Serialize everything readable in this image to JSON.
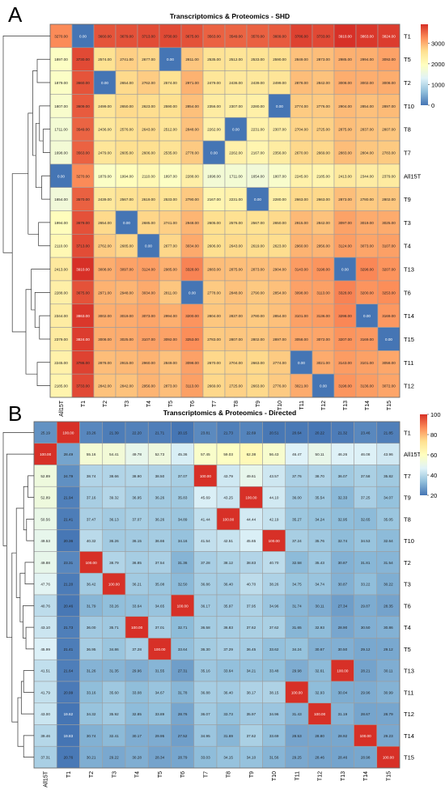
{
  "figure": {
    "panel_a_letter": "A",
    "panel_b_letter": "B"
  },
  "chart_data": [
    {
      "type": "heatmap",
      "title": "Transcriptomics & Proteomics - SHD",
      "xlabel": "",
      "ylabel": "",
      "columns": [
        "All15T",
        "T1",
        "T2",
        "T3",
        "T4",
        "T5",
        "T6",
        "T7",
        "T8",
        "T9",
        "T10",
        "T11",
        "T12",
        "T13",
        "T14",
        "T15"
      ],
      "rows": [
        "T1",
        "T5",
        "T2",
        "T10",
        "T8",
        "T7",
        "All15T",
        "T9",
        "T3",
        "T4",
        "T13",
        "T6",
        "T14",
        "T15",
        "T11",
        "T12"
      ],
      "values": [
        [
          3270,
          0,
          3660,
          3679,
          3713,
          3730,
          3675,
          3563,
          3549,
          3570,
          3609,
          3786,
          3733,
          3910,
          3863,
          3824
        ],
        [
          1897,
          3730,
          2574,
          2741,
          2677,
          0,
          2811,
          2535,
          2512,
          2533,
          2590,
          2849,
          2873,
          2985,
          2994,
          3092
        ],
        [
          1879,
          3660,
          0,
          2654,
          2762,
          2574,
          2971,
          2479,
          2436,
          2439,
          2499,
          2878,
          2842,
          3008,
          3002,
          3008
        ],
        [
          1807,
          3609,
          2499,
          2650,
          2623,
          2590,
          2854,
          2356,
          2307,
          2280,
          0,
          2774,
          2776,
          2904,
          2854,
          2897
        ],
        [
          1711,
          3549,
          2436,
          2576,
          2643,
          2512,
          2848,
          2262,
          0,
          2231,
          2307,
          2704,
          2725,
          2875,
          2837,
          2807
        ],
        [
          1698,
          3563,
          2479,
          2605,
          2606,
          2535,
          2778,
          0,
          2262,
          2167,
          2356,
          2670,
          2669,
          2883,
          2804,
          2783
        ],
        [
          0,
          3270,
          1879,
          1994,
          2110,
          1897,
          2288,
          1698,
          1711,
          1654,
          1807,
          2245,
          2185,
          2413,
          2344,
          2379
        ],
        [
          1654,
          3570,
          2439,
          2567,
          2619,
          2533,
          2790,
          2167,
          2231,
          0,
          2280,
          2663,
          2663,
          2873,
          2780,
          2802
        ],
        [
          1994,
          3679,
          2654,
          0,
          2685,
          2741,
          2948,
          2605,
          2576,
          2567,
          2650,
          2915,
          2842,
          3097,
          3019,
          3025
        ],
        [
          2110,
          3713,
          2762,
          2685,
          0,
          2677,
          3034,
          2606,
          2643,
          2619,
          2623,
          2960,
          2956,
          3124,
          3073,
          3107
        ],
        [
          2413,
          3910,
          3008,
          3097,
          3124,
          2985,
          3328,
          2883,
          2875,
          2873,
          2904,
          3143,
          3198,
          0,
          3298,
          3207
        ],
        [
          2288,
          3675,
          2971,
          2948,
          3034,
          2811,
          0,
          2778,
          2848,
          2790,
          2854,
          3098,
          3113,
          3328,
          3200,
          3253
        ],
        [
          2344,
          3863,
          3002,
          3019,
          3073,
          2994,
          3200,
          2804,
          2837,
          2780,
          2854,
          3101,
          3136,
          3298,
          0,
          3169
        ],
        [
          2379,
          3824,
          3008,
          3025,
          3107,
          3092,
          3253,
          2783,
          2807,
          2802,
          2897,
          3058,
          3072,
          3207,
          3169,
          0
        ],
        [
          2245,
          3786,
          2878,
          2915,
          2960,
          2849,
          3098,
          2670,
          2704,
          2663,
          2774,
          0,
          3021,
          3143,
          3101,
          3058
        ],
        [
          2185,
          3733,
          2842,
          2842,
          2956,
          2873,
          3113,
          2669,
          2725,
          2663,
          2776,
          3021,
          0,
          3198,
          3136,
          3072
        ]
      ],
      "colorbar": {
        "min": 0,
        "max": 3910,
        "ticks": [
          0,
          1000,
          2000,
          3000
        ]
      },
      "colormap": [
        "#4575b4",
        "#91bfdb",
        "#e0f3f8",
        "#ffffbf",
        "#fee090",
        "#fc8d59",
        "#d73027"
      ],
      "tick_labels": [
        "0",
        "1000",
        "2000",
        "3000"
      ],
      "number_format": 2,
      "dendrogram": "left"
    },
    {
      "type": "heatmap",
      "title": "Transcriptomics & Proteomics - Directed",
      "xlabel": "",
      "ylabel": "",
      "columns": [
        "All15T",
        "T1",
        "T2",
        "T3",
        "T4",
        "T5",
        "T6",
        "T7",
        "T8",
        "T9",
        "T10",
        "T11",
        "T12",
        "T13",
        "T14",
        "T15"
      ],
      "rows": [
        "T1",
        "All15T",
        "T7",
        "T9",
        "T8",
        "T10",
        "T2",
        "T3",
        "T6",
        "T4",
        "T5",
        "T13",
        "T11",
        "T12",
        "T14",
        "T15"
      ],
      "values": [
        [
          25.19,
          100.0,
          23.26,
          21.39,
          22.2,
          21.71,
          20.15,
          23.81,
          21.73,
          22.69,
          20.51,
          20.64,
          20.22,
          21.32,
          23.46,
          21.85
        ],
        [
          100.0,
          28.49,
          55.16,
          54.41,
          49.78,
          52.73,
          45.36,
          57.45,
          59.03,
          62.38,
          56.43,
          46.47,
          50.11,
          46.26,
          46.08,
          43.96
        ],
        [
          52.89,
          24.79,
          38.74,
          38.66,
          38.9,
          38.5,
          37.07,
          100.0,
          43.79,
          49.61,
          43.57,
          37.76,
          38.7,
          36.07,
          37.58,
          35.82
        ],
        [
          52.89,
          21.94,
          37.16,
          39.32,
          36.95,
          36.26,
          35.83,
          45.69,
          43.25,
          100.0,
          44.1,
          36.0,
          35.54,
          32.33,
          37.25,
          34.07
        ],
        [
          50.56,
          21.41,
          37.47,
          36.13,
          37.07,
          36.26,
          34.89,
          41.44,
          100.0,
          44.44,
          42.19,
          35.27,
          34.24,
          32.95,
          32.65,
          35.05
        ],
        [
          49.53,
          20.36,
          40.32,
          36.26,
          36.15,
          36.66,
          34.16,
          41.54,
          42.51,
          45.65,
          100.0,
          37.24,
          35.76,
          32.74,
          34.53,
          32.64
        ],
        [
          49.88,
          23.31,
          100.0,
          38.79,
          36.85,
          37.54,
          31.36,
          37.28,
          38.12,
          38.83,
          40.7,
          32.58,
          35.43,
          30.87,
          31.81,
          31.54
        ],
        [
          47.76,
          21.2,
          36.42,
          100.0,
          36.21,
          35.08,
          32.5,
          36.86,
          36.4,
          40.7,
          38.26,
          34.75,
          34.74,
          30.87,
          33.22,
          30.22
        ],
        [
          40.76,
          20.46,
          31.79,
          33.26,
          33.64,
          34.65,
          100.0,
          36.17,
          35.97,
          37.95,
          34.96,
          31.74,
          30.11,
          27.34,
          29.87,
          28.35
        ],
        [
          43.1,
          21.73,
          36.0,
          35.71,
          100.0,
          37.01,
          32.71,
          36.58,
          36.83,
          37.62,
          37.62,
          31.65,
          32.93,
          28.9,
          30.5,
          30.86
        ],
        [
          45.99,
          21.41,
          36.95,
          34.86,
          37.28,
          100.0,
          33.64,
          36.3,
          37.29,
          36.45,
          33.62,
          34.24,
          30.67,
          30.5,
          29.12,
          29.12
        ],
        [
          41.51,
          21.64,
          31.26,
          31.35,
          29.96,
          31.55,
          27.31,
          35.16,
          33.64,
          34.21,
          33.48,
          29.98,
          32.61,
          100.0,
          28.21,
          30.11
        ],
        [
          41.79,
          20.99,
          33.16,
          35.6,
          33.08,
          34.67,
          31.78,
          36.88,
          36.4,
          38.17,
          38.15,
          100.0,
          32.93,
          30.04,
          29.96,
          30.99
        ],
        [
          43.0,
          19.62,
          34.32,
          35.92,
          32.85,
          33.89,
          28.76,
          36.07,
          33.73,
          35.97,
          34.96,
          31.43,
          100.0,
          31.19,
          28.67,
          28.79
        ],
        [
          39.46,
          19.83,
          30.74,
          32.41,
          30.17,
          29.95,
          27.52,
          34.95,
          31.69,
          37.62,
          33.69,
          28.53,
          28.8,
          28.92,
          100.0,
          29.23
        ],
        [
          37.31,
          20.76,
          30.21,
          29.22,
          30.28,
          28.34,
          28.79,
          33.03,
          34.15,
          34.1,
          31.56,
          29.25,
          28.46,
          28.46,
          28.98,
          100.0
        ]
      ],
      "colorbar": {
        "min": 20,
        "max": 100,
        "ticks": [
          20,
          40,
          60,
          80,
          100
        ]
      },
      "colormap": [
        "#4575b4",
        "#91bfdb",
        "#e0f3f8",
        "#ffffbf",
        "#fee090",
        "#fc8d59",
        "#d73027"
      ],
      "tick_labels": [
        "20",
        "40",
        "60",
        "80",
        "100"
      ],
      "number_format": 2,
      "dendrogram": "left"
    }
  ]
}
